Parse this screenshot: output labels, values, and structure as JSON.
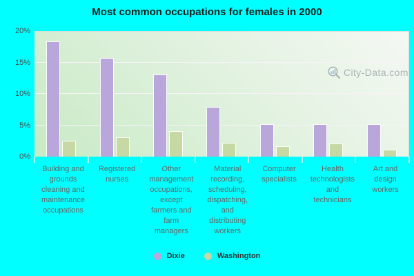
{
  "title": "Most common occupations for females in 2000",
  "watermark": "City-Data.com",
  "colors": {
    "page_background": "#00ffff",
    "plot_gradient_light": "#f4f8f3",
    "plot_gradient_green": "#c8eac5",
    "dixie_bar": "#b9a7db",
    "washington_bar": "#c6d8a4",
    "gridline": "rgba(249,242,249,0.9)",
    "axis_text": "#4c4c4c",
    "category_text": "#666666",
    "title_text": "#1b1b1b"
  },
  "chart_data": {
    "type": "bar",
    "title": "Most common occupations for females in 2000",
    "categories": [
      "Building and grounds cleaning and maintenance occupations",
      "Registered nurses",
      "Other management occupations, except farmers and farm managers",
      "Material recording, scheduling, dispatching, and distributing workers",
      "Computer specialists",
      "Health technologists and technicians",
      "Art and design workers"
    ],
    "series": [
      {
        "name": "Dixie",
        "color": "#b9a7db",
        "values": [
          18.3,
          15.7,
          13.1,
          7.9,
          5.2,
          5.2,
          5.2
        ]
      },
      {
        "name": "Washington",
        "color": "#c6d8a4",
        "values": [
          2.5,
          3.1,
          4.1,
          2.2,
          1.7,
          2.1,
          1.1
        ]
      }
    ],
    "xlabel": "",
    "ylabel": "",
    "ylim": [
      0,
      20
    ],
    "yticks": [
      {
        "value": 0,
        "label": "0%"
      },
      {
        "value": 5,
        "label": "5%"
      },
      {
        "value": 10,
        "label": "10%"
      },
      {
        "value": 15,
        "label": "15%"
      },
      {
        "value": 20,
        "label": "20%"
      }
    ],
    "grid": true,
    "legend_position": "bottom"
  }
}
